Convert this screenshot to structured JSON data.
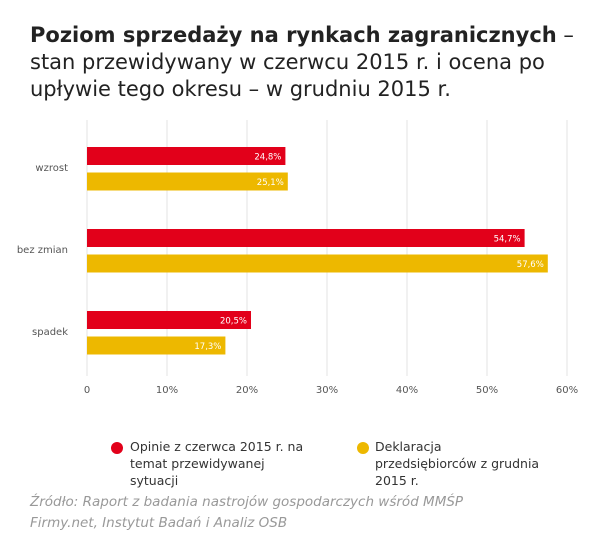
{
  "chart_data": {
    "type": "bar",
    "orientation": "horizontal",
    "title": "Poziom sprzedaży na rynkach zagranicznych",
    "title_continued": " – stan przewidywany w czerwcu 2015 r. i ocena po upływie tego okresu – w grudniu 2015 r.",
    "categories": [
      "wzrost",
      "bez zmian",
      "spadek"
    ],
    "series": [
      {
        "name": "Opinie z czerwca 2015 r. na temat przewidywanej sytuacji",
        "color": "#e2001a",
        "values": [
          24.8,
          54.7,
          20.5
        ],
        "value_labels": [
          "24,8%",
          "54,7%",
          "20,5%"
        ]
      },
      {
        "name": "Deklaracja przedsiębiorców z grudnia 2015 r.",
        "color": "#edb800",
        "values": [
          25.1,
          57.6,
          17.3
        ],
        "value_labels": [
          "25,1%",
          "57,6%",
          "17,3%"
        ]
      }
    ],
    "xlim": [
      0,
      60
    ],
    "xticks": [
      0,
      {
        "value": 10,
        "label": "10%"
      },
      {
        "value": 20,
        "label": "20%"
      },
      {
        "value": 30,
        "label": "30%"
      },
      {
        "value": 40,
        "label": "40%"
      },
      {
        "value": 50,
        "label": "50%"
      },
      {
        "value": 60,
        "label": "60%"
      }
    ],
    "grid": true,
    "source": "Źródło: Raport z badania nastrojów gospodarczych wśród MMŚP Firmy.net, Instytut Badań i Analiz OSB"
  }
}
